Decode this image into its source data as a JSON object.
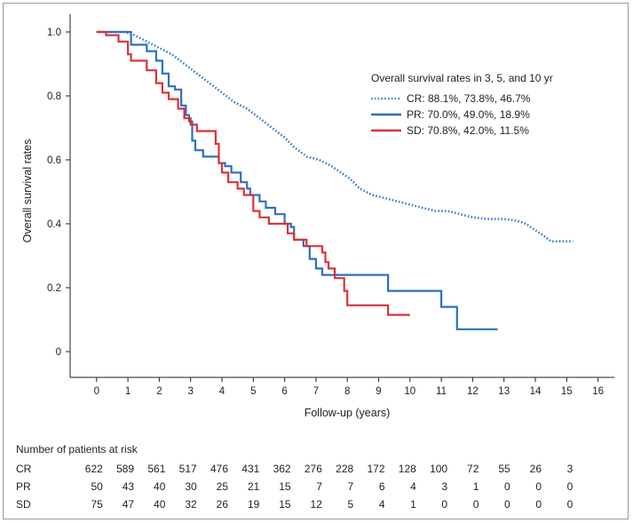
{
  "chart_data": {
    "type": "line",
    "subtype": "kaplan-meier",
    "xlabel": "Follow-up (years)",
    "ylabel": "Overall survival rates",
    "xlim": [
      -0.8,
      16.8
    ],
    "ylim": [
      -0.08,
      1.05
    ],
    "xticks": [
      0,
      1,
      2,
      3,
      4,
      5,
      6,
      7,
      8,
      9,
      10,
      11,
      12,
      13,
      14,
      15,
      16
    ],
    "yticks": [
      {
        "value": 0,
        "label": "0"
      },
      {
        "value": 0.2,
        "label": "0.2"
      },
      {
        "value": 0.4,
        "label": "0.4"
      },
      {
        "value": 0.6,
        "label": "0.6"
      },
      {
        "value": 0.8,
        "label": "0.8"
      },
      {
        "value": 1.0,
        "label": "1.0"
      }
    ],
    "legend": {
      "title": "Overall survival rates in 3, 5, and 10 yr",
      "placement": "top-right"
    },
    "series": [
      {
        "name": "CR",
        "label": "CR: 88.1%, 73.8%, 46.7%",
        "color": "#3a7fc9",
        "style": "dotted",
        "points": [
          [
            0,
            1.0
          ],
          [
            0.9,
            1.0
          ],
          [
            1.2,
            0.99
          ],
          [
            1.6,
            0.97
          ],
          [
            2.0,
            0.95
          ],
          [
            2.4,
            0.93
          ],
          [
            2.8,
            0.9
          ],
          [
            3.2,
            0.87
          ],
          [
            3.6,
            0.84
          ],
          [
            4.0,
            0.81
          ],
          [
            4.4,
            0.78
          ],
          [
            4.8,
            0.76
          ],
          [
            5.2,
            0.73
          ],
          [
            5.6,
            0.7
          ],
          [
            6.0,
            0.67
          ],
          [
            6.3,
            0.64
          ],
          [
            6.7,
            0.61
          ],
          [
            7.1,
            0.6
          ],
          [
            7.5,
            0.58
          ],
          [
            7.8,
            0.56
          ],
          [
            8.1,
            0.54
          ],
          [
            8.4,
            0.51
          ],
          [
            8.8,
            0.49
          ],
          [
            9.2,
            0.48
          ],
          [
            9.6,
            0.47
          ],
          [
            10.0,
            0.46
          ],
          [
            10.4,
            0.45
          ],
          [
            10.8,
            0.44
          ],
          [
            11.2,
            0.44
          ],
          [
            11.6,
            0.43
          ],
          [
            12.0,
            0.42
          ],
          [
            12.5,
            0.415
          ],
          [
            13.0,
            0.415
          ],
          [
            13.4,
            0.41
          ],
          [
            13.7,
            0.4
          ],
          [
            14.0,
            0.38
          ],
          [
            14.3,
            0.36
          ],
          [
            14.5,
            0.345
          ],
          [
            15.2,
            0.345
          ]
        ]
      },
      {
        "name": "PR",
        "label": "PR: 70.0%, 49.0%, 18.9%",
        "color": "#2e6fc0",
        "style": "solid",
        "steps": [
          [
            0,
            1.0
          ],
          [
            1.1,
            0.96
          ],
          [
            1.6,
            0.94
          ],
          [
            1.9,
            0.91
          ],
          [
            2.1,
            0.87
          ],
          [
            2.3,
            0.83
          ],
          [
            2.5,
            0.82
          ],
          [
            2.7,
            0.77
          ],
          [
            2.85,
            0.74
          ],
          [
            2.95,
            0.72
          ],
          [
            3.05,
            0.66
          ],
          [
            3.15,
            0.63
          ],
          [
            3.4,
            0.61
          ],
          [
            3.9,
            0.59
          ],
          [
            4.1,
            0.58
          ],
          [
            4.3,
            0.56
          ],
          [
            4.6,
            0.53
          ],
          [
            4.8,
            0.51
          ],
          [
            4.9,
            0.49
          ],
          [
            5.2,
            0.47
          ],
          [
            5.4,
            0.45
          ],
          [
            5.7,
            0.43
          ],
          [
            6.0,
            0.4
          ],
          [
            6.2,
            0.39
          ],
          [
            6.3,
            0.35
          ],
          [
            6.6,
            0.33
          ],
          [
            6.8,
            0.29
          ],
          [
            7.0,
            0.26
          ],
          [
            7.2,
            0.24
          ],
          [
            9.3,
            0.19
          ],
          [
            11.0,
            0.14
          ],
          [
            11.5,
            0.07
          ],
          [
            12.8,
            0.07
          ]
        ]
      },
      {
        "name": "SD",
        "label": "SD: 70.8%, 42.0%, 11.5%",
        "color": "#d8333a",
        "style": "solid",
        "steps": [
          [
            0,
            1.0
          ],
          [
            0.3,
            0.99
          ],
          [
            0.7,
            0.97
          ],
          [
            1.0,
            0.93
          ],
          [
            1.1,
            0.91
          ],
          [
            1.6,
            0.88
          ],
          [
            1.9,
            0.84
          ],
          [
            2.1,
            0.81
          ],
          [
            2.3,
            0.79
          ],
          [
            2.6,
            0.76
          ],
          [
            2.8,
            0.73
          ],
          [
            3.0,
            0.71
          ],
          [
            3.2,
            0.69
          ],
          [
            3.8,
            0.65
          ],
          [
            3.9,
            0.59
          ],
          [
            4.0,
            0.56
          ],
          [
            4.2,
            0.53
          ],
          [
            4.5,
            0.51
          ],
          [
            4.7,
            0.49
          ],
          [
            5.0,
            0.44
          ],
          [
            5.2,
            0.42
          ],
          [
            5.5,
            0.4
          ],
          [
            6.1,
            0.37
          ],
          [
            6.3,
            0.35
          ],
          [
            6.7,
            0.33
          ],
          [
            7.2,
            0.31
          ],
          [
            7.3,
            0.28
          ],
          [
            7.4,
            0.26
          ],
          [
            7.6,
            0.23
          ],
          [
            7.9,
            0.19
          ],
          [
            8.0,
            0.145
          ],
          [
            9.3,
            0.115
          ],
          [
            10.0,
            0.115
          ]
        ]
      }
    ],
    "risk_table": {
      "title": "Number of patients at risk",
      "rows": [
        {
          "label": "CR",
          "values": [
            "622",
            "589",
            "561",
            "517",
            "476",
            "431",
            "362",
            "276",
            "228",
            "172",
            "128",
            "100",
            "72",
            "55",
            "26",
            "3"
          ]
        },
        {
          "label": "PR",
          "values": [
            "50",
            "43",
            "40",
            "30",
            "25",
            "21",
            "15",
            "7",
            "7",
            "6",
            "4",
            "3",
            "1",
            "0",
            "0",
            "0"
          ]
        },
        {
          "label": "SD",
          "values": [
            "75",
            "47",
            "40",
            "32",
            "26",
            "19",
            "15",
            "12",
            "5",
            "4",
            "1",
            "0",
            "0",
            "0",
            "0",
            "0"
          ]
        }
      ]
    }
  }
}
